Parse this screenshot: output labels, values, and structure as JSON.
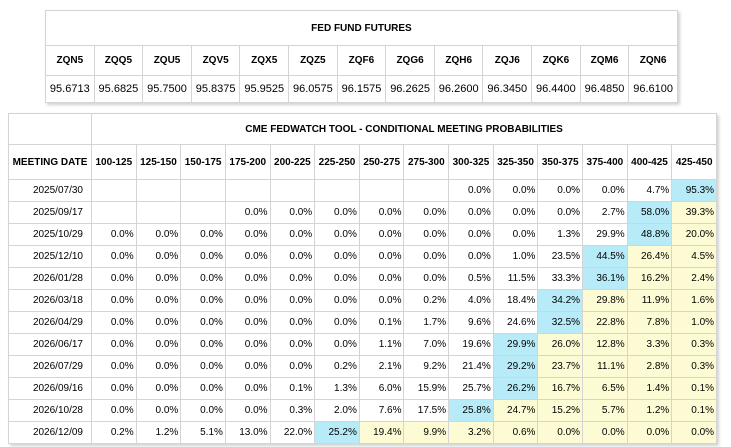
{
  "futures": {
    "title": "FED FUND FUTURES",
    "codes": [
      "ZQN5",
      "ZQQ5",
      "ZQU5",
      "ZQV5",
      "ZQX5",
      "ZQZ5",
      "ZQF6",
      "ZQG6",
      "ZQH6",
      "ZQJ6",
      "ZQK6",
      "ZQM6",
      "ZQN6"
    ],
    "prices": [
      "95.6713",
      "95.6825",
      "95.7500",
      "95.8375",
      "95.9525",
      "96.0575",
      "96.1575",
      "96.2625",
      "96.2600",
      "96.3450",
      "96.4400",
      "96.4850",
      "96.6100"
    ]
  },
  "fedwatch": {
    "title": "CME FEDWATCH TOOL - CONDITIONAL MEETING PROBABILITIES",
    "date_header": "MEETING DATE",
    "ranges": [
      "100-125",
      "125-150",
      "150-175",
      "175-200",
      "200-225",
      "225-250",
      "250-275",
      "275-300",
      "300-325",
      "325-350",
      "350-375",
      "375-400",
      "400-425",
      "425-450"
    ],
    "highlight_colors": {
      "max": "#b7ebf7",
      "above_max": "#fcfbd3"
    },
    "rows": [
      {
        "date": "2025/07/30",
        "values": [
          "",
          "",
          "",
          "",
          "",
          "",
          "",
          "",
          "0.0%",
          "0.0%",
          "0.0%",
          "0.0%",
          "4.7%",
          "95.3%"
        ],
        "max": 13
      },
      {
        "date": "2025/09/17",
        "values": [
          "",
          "",
          "",
          "0.0%",
          "0.0%",
          "0.0%",
          "0.0%",
          "0.0%",
          "0.0%",
          "0.0%",
          "0.0%",
          "2.7%",
          "58.0%",
          "39.3%"
        ],
        "max": 12
      },
      {
        "date": "2025/10/29",
        "values": [
          "0.0%",
          "0.0%",
          "0.0%",
          "0.0%",
          "0.0%",
          "0.0%",
          "0.0%",
          "0.0%",
          "0.0%",
          "0.0%",
          "1.3%",
          "29.9%",
          "48.8%",
          "20.0%"
        ],
        "max": 12
      },
      {
        "date": "2025/12/10",
        "values": [
          "0.0%",
          "0.0%",
          "0.0%",
          "0.0%",
          "0.0%",
          "0.0%",
          "0.0%",
          "0.0%",
          "0.0%",
          "1.0%",
          "23.5%",
          "44.5%",
          "26.4%",
          "4.5%"
        ],
        "max": 11
      },
      {
        "date": "2026/01/28",
        "values": [
          "0.0%",
          "0.0%",
          "0.0%",
          "0.0%",
          "0.0%",
          "0.0%",
          "0.0%",
          "0.0%",
          "0.5%",
          "11.5%",
          "33.3%",
          "36.1%",
          "16.2%",
          "2.4%"
        ],
        "max": 11
      },
      {
        "date": "2026/03/18",
        "values": [
          "0.0%",
          "0.0%",
          "0.0%",
          "0.0%",
          "0.0%",
          "0.0%",
          "0.0%",
          "0.2%",
          "4.0%",
          "18.4%",
          "34.2%",
          "29.8%",
          "11.9%",
          "1.6%"
        ],
        "max": 10
      },
      {
        "date": "2026/04/29",
        "values": [
          "0.0%",
          "0.0%",
          "0.0%",
          "0.0%",
          "0.0%",
          "0.0%",
          "0.1%",
          "1.7%",
          "9.6%",
          "24.6%",
          "32.5%",
          "22.8%",
          "7.8%",
          "1.0%"
        ],
        "max": 10
      },
      {
        "date": "2026/06/17",
        "values": [
          "0.0%",
          "0.0%",
          "0.0%",
          "0.0%",
          "0.0%",
          "0.0%",
          "1.1%",
          "7.0%",
          "19.6%",
          "29.9%",
          "26.0%",
          "12.8%",
          "3.3%",
          "0.3%"
        ],
        "max": 9
      },
      {
        "date": "2026/07/29",
        "values": [
          "0.0%",
          "0.0%",
          "0.0%",
          "0.0%",
          "0.0%",
          "0.2%",
          "2.1%",
          "9.2%",
          "21.4%",
          "29.2%",
          "23.7%",
          "11.1%",
          "2.8%",
          "0.3%"
        ],
        "max": 9
      },
      {
        "date": "2026/09/16",
        "values": [
          "0.0%",
          "0.0%",
          "0.0%",
          "0.0%",
          "0.1%",
          "1.3%",
          "6.0%",
          "15.9%",
          "25.7%",
          "26.2%",
          "16.7%",
          "6.5%",
          "1.4%",
          "0.1%"
        ],
        "max": 9
      },
      {
        "date": "2026/10/28",
        "values": [
          "0.0%",
          "0.0%",
          "0.0%",
          "0.0%",
          "0.3%",
          "2.0%",
          "7.6%",
          "17.5%",
          "25.8%",
          "24.7%",
          "15.2%",
          "5.7%",
          "1.2%",
          "0.1%"
        ],
        "max": 8
      },
      {
        "date": "2026/12/09",
        "values": [
          "0.2%",
          "1.2%",
          "5.1%",
          "13.0%",
          "22.0%",
          "25.2%",
          "19.4%",
          "9.9%",
          "3.2%",
          "0.6%",
          "0.0%",
          "0.0%",
          "0.0%",
          "0.0%"
        ],
        "max": 5
      }
    ]
  }
}
